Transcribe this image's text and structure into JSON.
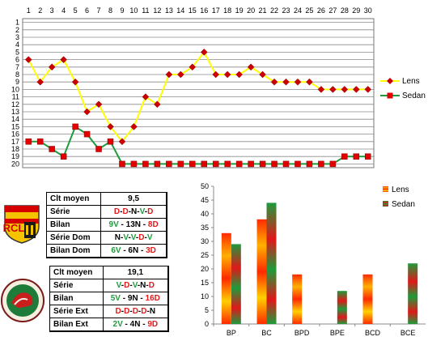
{
  "chart_data": [
    {
      "type": "line",
      "x": [
        1,
        2,
        3,
        4,
        5,
        6,
        7,
        8,
        9,
        10,
        11,
        12,
        13,
        14,
        15,
        16,
        17,
        18,
        19,
        20,
        21,
        22,
        23,
        24,
        25,
        26,
        27,
        28,
        29,
        30
      ],
      "y_ticks": [
        1,
        2,
        3,
        4,
        5,
        6,
        7,
        8,
        9,
        10,
        11,
        12,
        13,
        14,
        15,
        16,
        17,
        18,
        19,
        20
      ],
      "ylim": [
        1,
        20
      ],
      "y_inverted": true,
      "grid": true,
      "legend_position": "right",
      "series": [
        {
          "name": "Lens",
          "color": "#ffff00",
          "marker_color": "#cc0000",
          "values": [
            6,
            9,
            7,
            6,
            9,
            13,
            12,
            15,
            17,
            15,
            11,
            12,
            8,
            8,
            7,
            5,
            8,
            8,
            8,
            7,
            8,
            9,
            9,
            9,
            9,
            10,
            10,
            10,
            10,
            10
          ]
        },
        {
          "name": "Sedan",
          "color": "#1e9b3c",
          "marker_color": "#e20000",
          "values": [
            17,
            17,
            18,
            19,
            15,
            16,
            18,
            17,
            20,
            20,
            20,
            20,
            20,
            20,
            20,
            20,
            20,
            20,
            20,
            20,
            20,
            20,
            20,
            20,
            20,
            20,
            20,
            19,
            19,
            19
          ]
        }
      ]
    },
    {
      "type": "bar",
      "categories": [
        "BP",
        "BC",
        "BPD",
        "BPE",
        "BCD",
        "BCE"
      ],
      "ylim": [
        0,
        50
      ],
      "y_ticks": [
        0,
        5,
        10,
        15,
        20,
        25,
        30,
        35,
        40,
        45,
        50
      ],
      "legend_position": "top-right",
      "series": [
        {
          "name": "Lens",
          "values": [
            33,
            38,
            18,
            0,
            18,
            0
          ]
        },
        {
          "name": "Sedan",
          "values": [
            29,
            44,
            0,
            12,
            0,
            22
          ]
        }
      ]
    }
  ],
  "lens_table": {
    "rows": [
      {
        "label": "Clt moyen",
        "parts": [
          {
            "t": "9,5",
            "c": "k"
          }
        ]
      },
      {
        "label": "Série",
        "parts": [
          {
            "t": "D",
            "c": "r"
          },
          {
            "t": "-",
            "c": "k"
          },
          {
            "t": "D",
            "c": "r"
          },
          {
            "t": "-",
            "c": "k"
          },
          {
            "t": "N",
            "c": "k"
          },
          {
            "t": "-",
            "c": "k"
          },
          {
            "t": "V",
            "c": "g"
          },
          {
            "t": "-",
            "c": "k"
          },
          {
            "t": "D",
            "c": "r"
          }
        ]
      },
      {
        "label": "Bilan",
        "parts": [
          {
            "t": "9V",
            "c": "g"
          },
          {
            "t": " - 13N - ",
            "c": "k"
          },
          {
            "t": "8D",
            "c": "r"
          }
        ]
      },
      {
        "label": "Série Dom",
        "parts": [
          {
            "t": "N",
            "c": "k"
          },
          {
            "t": "-",
            "c": "k"
          },
          {
            "t": "V",
            "c": "g"
          },
          {
            "t": "-",
            "c": "k"
          },
          {
            "t": "V",
            "c": "g"
          },
          {
            "t": "-",
            "c": "k"
          },
          {
            "t": "D",
            "c": "r"
          },
          {
            "t": "-",
            "c": "k"
          },
          {
            "t": "V",
            "c": "g"
          }
        ]
      },
      {
        "label": "Bilan Dom",
        "parts": [
          {
            "t": "6V",
            "c": "g"
          },
          {
            "t": " - 6N - ",
            "c": "k"
          },
          {
            "t": "3D",
            "c": "r"
          }
        ]
      }
    ]
  },
  "sedan_table": {
    "rows": [
      {
        "label": "Clt moyen",
        "parts": [
          {
            "t": "19,1",
            "c": "k"
          }
        ]
      },
      {
        "label": "Série",
        "parts": [
          {
            "t": "V",
            "c": "g"
          },
          {
            "t": "-",
            "c": "k"
          },
          {
            "t": "D",
            "c": "r"
          },
          {
            "t": "-",
            "c": "k"
          },
          {
            "t": "V",
            "c": "g"
          },
          {
            "t": "-",
            "c": "k"
          },
          {
            "t": "N",
            "c": "k"
          },
          {
            "t": "-",
            "c": "k"
          },
          {
            "t": "D",
            "c": "r"
          }
        ]
      },
      {
        "label": "Bilan",
        "parts": [
          {
            "t": "5V",
            "c": "g"
          },
          {
            "t": " - 9N - ",
            "c": "k"
          },
          {
            "t": "16D",
            "c": "r"
          }
        ]
      },
      {
        "label": "Série Ext",
        "parts": [
          {
            "t": "D",
            "c": "r"
          },
          {
            "t": "-",
            "c": "k"
          },
          {
            "t": "D",
            "c": "r"
          },
          {
            "t": "-",
            "c": "k"
          },
          {
            "t": "D",
            "c": "r"
          },
          {
            "t": "-",
            "c": "k"
          },
          {
            "t": "D",
            "c": "r"
          },
          {
            "t": "-",
            "c": "k"
          },
          {
            "t": "N",
            "c": "k"
          }
        ]
      },
      {
        "label": "Bilan Ext",
        "parts": [
          {
            "t": "2V",
            "c": "g"
          },
          {
            "t": " - 4N - ",
            "c": "k"
          },
          {
            "t": "9D",
            "c": "r"
          }
        ]
      }
    ]
  },
  "logos": {
    "lens": {
      "text": "RCL",
      "colors": [
        "#f5c400",
        "#d40000"
      ]
    },
    "sedan": {
      "colors": [
        "#1e7b3a",
        "#c81e1e"
      ]
    }
  }
}
